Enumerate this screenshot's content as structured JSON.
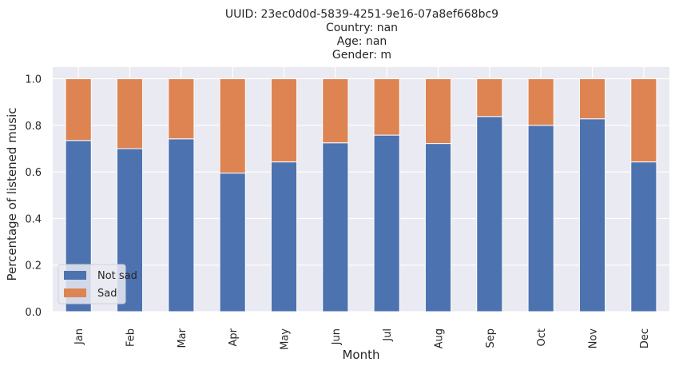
{
  "title_lines": [
    "UUID: 23ec0d0d-5839-4251-9e16-07a8ef668bc9",
    "Country: nan",
    "Age: nan",
    "Gender: m"
  ],
  "chart_data": {
    "type": "bar",
    "stacked": true,
    "categories": [
      "Jan",
      "Feb",
      "Mar",
      "Apr",
      "May",
      "Jun",
      "Jul",
      "Aug",
      "Sep",
      "Oct",
      "Nov",
      "Dec"
    ],
    "series": [
      {
        "name": "Not sad",
        "color": "#4c72b0",
        "values": [
          0.735,
          0.7,
          0.742,
          0.595,
          0.643,
          0.725,
          0.758,
          0.722,
          0.838,
          0.8,
          0.828,
          0.643
        ]
      },
      {
        "name": "Sad",
        "color": "#dd8452",
        "values": [
          0.265,
          0.3,
          0.258,
          0.405,
          0.357,
          0.275,
          0.242,
          0.278,
          0.162,
          0.2,
          0.172,
          0.357
        ]
      }
    ],
    "xlabel": "Month",
    "ylabel": "Percentage of listened music",
    "ylim": [
      0,
      1.05
    ],
    "yticks": [
      0.0,
      0.2,
      0.4,
      0.6,
      0.8,
      1.0
    ],
    "ytick_labels": [
      "0.0",
      "0.2",
      "0.4",
      "0.6",
      "0.8",
      "1.0"
    ],
    "grid": true,
    "legend_position": "lower-left",
    "background": "#eaeaf2"
  }
}
